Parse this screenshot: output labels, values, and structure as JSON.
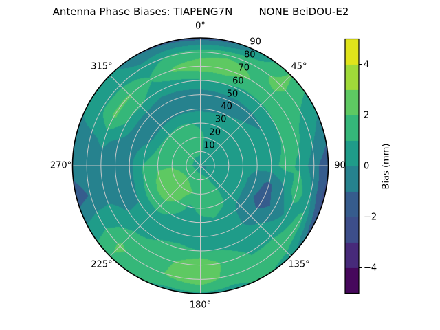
{
  "figure": {
    "title": "Antenna Phase Biases: TIAPENG7N        NONE BeiDOU-E2"
  },
  "polar_axes": {
    "angular_tick_labels": [
      {
        "label": "0°",
        "angle_deg": 0
      },
      {
        "label": "45°",
        "angle_deg": 45
      },
      {
        "label": "90",
        "angle_deg": 90
      },
      {
        "label": "135°",
        "angle_deg": 135
      },
      {
        "label": "180°",
        "angle_deg": 180
      },
      {
        "label": "225°",
        "angle_deg": 225
      },
      {
        "label": "270°",
        "angle_deg": 270
      },
      {
        "label": "315°",
        "angle_deg": 315
      }
    ],
    "radial_tick_labels": [
      {
        "label": "10",
        "value": 10
      },
      {
        "label": "20",
        "value": 20
      },
      {
        "label": "30",
        "value": 30
      },
      {
        "label": "40",
        "value": 40
      },
      {
        "label": "50",
        "value": 50
      },
      {
        "label": "60",
        "value": 60
      },
      {
        "label": "70",
        "value": 70
      },
      {
        "label": "80",
        "value": 80
      },
      {
        "label": "90",
        "value": 90
      }
    ],
    "radial_max": 90,
    "grid_color": "#c8c8c8"
  },
  "colorbar": {
    "axis_label": "Bias (mm)",
    "vmin": -5,
    "vmax": 5,
    "tick_labels": [
      {
        "label": "4",
        "value": 4
      },
      {
        "label": "2",
        "value": 2
      },
      {
        "label": "0",
        "value": 0
      },
      {
        "label": "−2",
        "value": -2
      },
      {
        "label": "−4",
        "value": -4
      }
    ],
    "band_colors_bottom_to_top": [
      "#46085c",
      "#472a7a",
      "#3d4e8a",
      "#365c8d",
      "#26828e",
      "#1f9c89",
      "#35b779",
      "#5ec962",
      "#a0da39",
      "#e0e41b"
    ]
  },
  "chart_data": {
    "type": "heatmap",
    "subtype": "polar-filled-contour",
    "title": "Antenna Phase Biases: TIAPENG7N        NONE BeiDOU-E2",
    "colorbar_label": "Bias (mm)",
    "units": "mm",
    "colormap": "viridis",
    "contour_levels": [
      -5,
      -4,
      -3,
      -2,
      -1,
      0,
      1,
      2,
      3,
      4,
      5
    ],
    "theta_zero_location": "top",
    "theta_direction": "clockwise",
    "azimuth_deg": [
      0,
      15,
      30,
      45,
      60,
      75,
      90,
      105,
      120,
      135,
      150,
      165,
      180,
      195,
      210,
      225,
      240,
      255,
      270,
      285,
      300,
      315,
      330,
      345
    ],
    "zenith_deg": [
      0,
      10,
      20,
      30,
      40,
      50,
      60,
      70,
      80,
      90
    ],
    "bias_mm_grid": [
      [
        0.4,
        0.4,
        0.4,
        0.4,
        0.4,
        0.3,
        -0.3,
        -0.4,
        -0.4,
        -0.3,
        0.2,
        0.4,
        0.4,
        0.4,
        0.4,
        0.4,
        0.4,
        0.4,
        0.4,
        0.4,
        0.4,
        0.4,
        0.4,
        0.4
      ],
      [
        1.2,
        0.8,
        0.5,
        0.4,
        0.4,
        0.4,
        0.4,
        0.5,
        0.5,
        0.6,
        1.0,
        1.3,
        1.5,
        1.6,
        1.7,
        1.8,
        1.8,
        1.7,
        1.4,
        1.5,
        1.5,
        1.4,
        1.3,
        1.3
      ],
      [
        1.3,
        0.7,
        0.4,
        0.3,
        0.3,
        0.3,
        0.4,
        0.5,
        0.6,
        0.7,
        1.2,
        1.5,
        1.7,
        2.0,
        2.3,
        2.6,
        2.6,
        2.3,
        1.9,
        1.7,
        1.6,
        1.5,
        1.5,
        1.4
      ],
      [
        0.8,
        0.5,
        0.3,
        0.2,
        0.2,
        0.3,
        0.4,
        0.5,
        0.6,
        0.7,
        1.1,
        1.4,
        1.3,
        0.8,
        1.9,
        2.5,
        2.5,
        2.2,
        1.8,
        1.4,
        1.2,
        1.1,
        1.2,
        1.1
      ],
      [
        -0.2,
        -0.1,
        0.0,
        0.1,
        0.2,
        0.3,
        0.3,
        -0.6,
        -0.8,
        -0.5,
        0.6,
        0.9,
        0.7,
        0.4,
        0.9,
        1.5,
        1.5,
        1.2,
        1.1,
        0.3,
        -0.3,
        -0.3,
        -0.2,
        -0.2
      ],
      [
        -0.5,
        -0.4,
        -0.3,
        -0.2,
        0.0,
        0.2,
        0.6,
        -1.2,
        -1.4,
        -0.6,
        0.4,
        0.5,
        0.5,
        0.6,
        0.7,
        0.3,
        0.0,
        -0.3,
        -0.3,
        -0.4,
        -0.6,
        -0.6,
        -0.5,
        -0.5
      ],
      [
        0.9,
        1.0,
        0.8,
        0.9,
        1.0,
        1.1,
        1.4,
        -0.2,
        -0.8,
        0.2,
        0.5,
        0.9,
        1.0,
        1.2,
        1.0,
        0.5,
        -0.1,
        -0.5,
        -0.5,
        -0.3,
        1.0,
        1.2,
        0.4,
        0.6
      ],
      [
        2.6,
        2.7,
        2.0,
        1.8,
        1.5,
        1.2,
        0.8,
        1.7,
        0.2,
        0.8,
        0.9,
        1.7,
        3.0,
        2.0,
        1.4,
        1.4,
        0.5,
        -0.5,
        -0.4,
        0.2,
        2.2,
        2.1,
        1.1,
        2.2
      ],
      [
        1.5,
        1.8,
        1.7,
        2.3,
        1.1,
        0.3,
        -0.6,
        0.1,
        1.5,
        1.7,
        1.3,
        1.6,
        2.8,
        2.2,
        1.4,
        2.2,
        0.6,
        -0.9,
        -0.4,
        -0.2,
        0.8,
        0.7,
        0.4,
        1.2
      ],
      [
        -1.5,
        -1.3,
        0.3,
        2.1,
        0.4,
        -0.6,
        -1.8,
        -2.5,
        -1.6,
        0.6,
        1.2,
        0.7,
        0.8,
        0.7,
        1.2,
        1.9,
        0.3,
        -1.5,
        -0.6,
        -0.3,
        0.2,
        0.5,
        -1.1,
        -1.3
      ]
    ]
  }
}
